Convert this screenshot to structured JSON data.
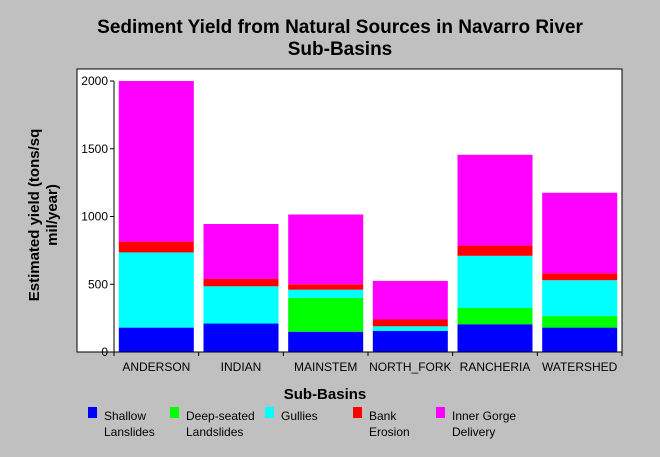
{
  "chart_data": {
    "type": "bar",
    "stacked": true,
    "title": "Sediment Yield from Natural Sources in Navarro River Sub-Basins",
    "title_lines": [
      "Sediment Yield from Natural Sources in Navarro River",
      "Sub-Basins"
    ],
    "xlabel": "Sub-Basins",
    "ylabel": "Estimated yield (tons/sq mil/year)",
    "ylabel_lines": [
      "Estimated yield (tons/sq",
      "mil/year)"
    ],
    "ylim": [
      0,
      2000
    ],
    "yticks": [
      "0",
      "500",
      "1000",
      "1500",
      "2000"
    ],
    "ytick_values": [
      0,
      500,
      1000,
      1500,
      2000
    ],
    "grid": false,
    "legend_position": "bottom",
    "categories": [
      "ANDERSON",
      "INDIAN",
      "MAINSTEM",
      "NORTH_FORK",
      "RANCHERIA",
      "WATERSHED"
    ],
    "series": [
      {
        "name": "Shallow Lanslides",
        "label_lines": [
          "Shallow",
          "Lanslides"
        ],
        "color": "#0000ff",
        "values": [
          180,
          210,
          150,
          155,
          205,
          180
        ]
      },
      {
        "name": "Deep-seated Landslides",
        "label_lines": [
          "Deep-seated",
          "Landslides"
        ],
        "color": "#00ff00",
        "values": [
          0,
          0,
          250,
          0,
          120,
          85
        ]
      },
      {
        "name": "Gullies",
        "label_lines": [
          "Gullies"
        ],
        "color": "#00ffff",
        "values": [
          555,
          275,
          60,
          35,
          385,
          265
        ]
      },
      {
        "name": "Bank Erosion",
        "label_lines": [
          "Bank",
          "Erosion"
        ],
        "color": "#ff0000",
        "values": [
          80,
          55,
          40,
          50,
          75,
          50
        ]
      },
      {
        "name": "Inner Gorge Delivery",
        "label_lines": [
          "Inner Gorge",
          "Delivery"
        ],
        "color": "#ff00ff",
        "values": [
          1185,
          405,
          515,
          285,
          670,
          595
        ]
      }
    ]
  }
}
